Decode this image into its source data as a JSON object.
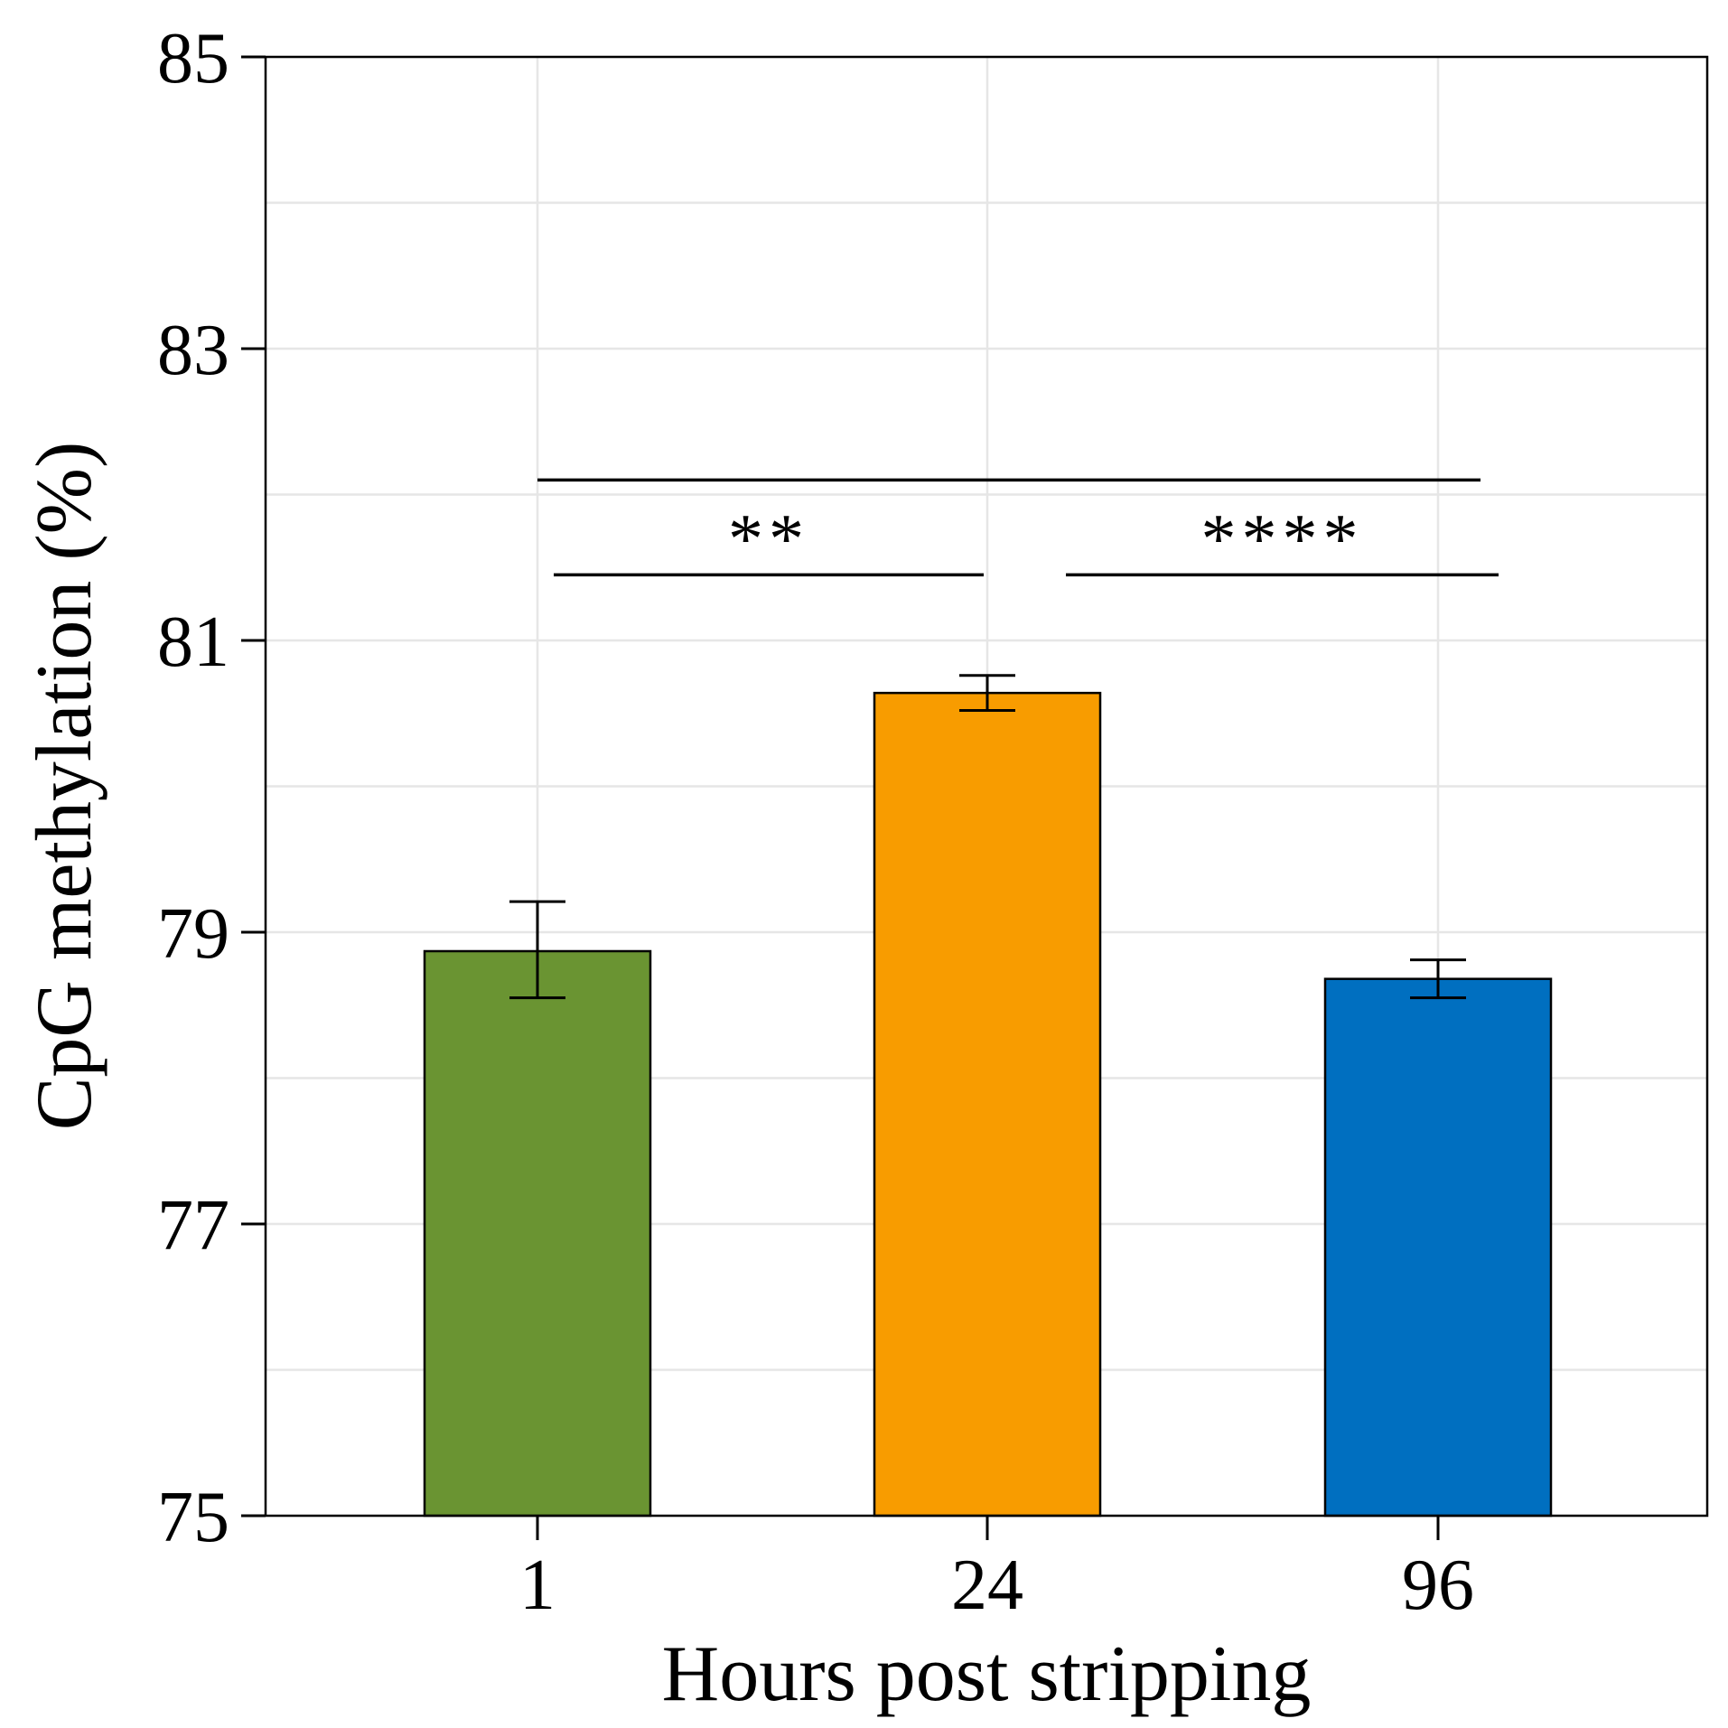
{
  "chart_data": {
    "type": "bar",
    "title": "",
    "xlabel": "Hours post stripping",
    "ylabel": "CpG methylation (%)",
    "categories": [
      "1",
      "24",
      "96"
    ],
    "values": [
      78.87,
      80.64,
      78.68
    ],
    "error_low": [
      78.55,
      80.52,
      78.55
    ],
    "error_high": [
      79.21,
      80.76,
      78.81
    ],
    "colors": [
      "#6a9432",
      "#f89c00",
      "#006fc0"
    ],
    "ylim": [
      75,
      85
    ],
    "yticks": [
      "75",
      "77",
      "79",
      "81",
      "83",
      "85"
    ],
    "ytick_values": [
      75,
      77,
      79,
      81,
      83,
      85
    ],
    "grid": true,
    "significance": [
      {
        "from": 0,
        "to": 2,
        "label": "",
        "y": 82.1
      },
      {
        "from": 0,
        "to": 1,
        "label": "**",
        "y": 81.45
      },
      {
        "from": 1,
        "to": 2,
        "label": "****",
        "y": 81.45
      }
    ]
  }
}
